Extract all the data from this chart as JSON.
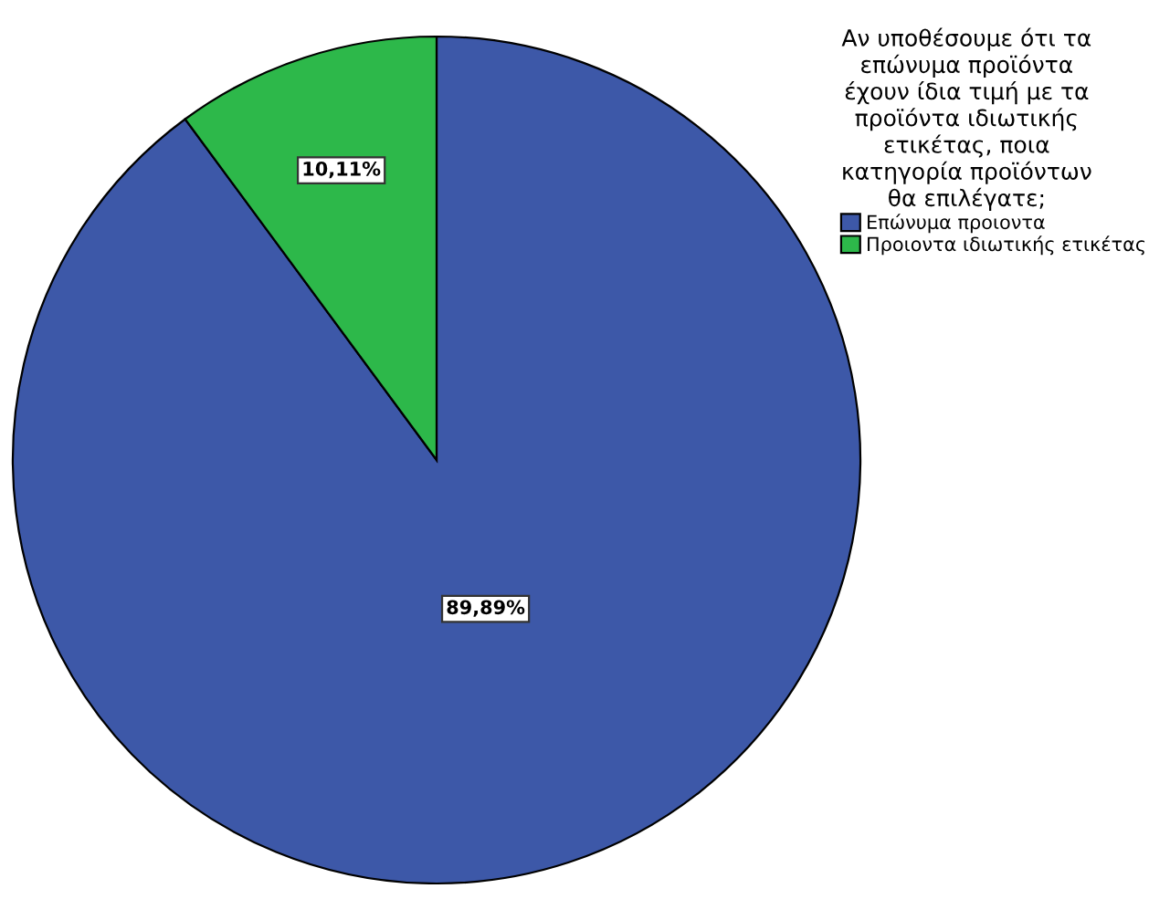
{
  "chart_data": {
    "type": "pie",
    "categories": [
      "Επώνυμα προιοντα",
      "Προιοντα ιδιωτικής ετικέτας"
    ],
    "values": [
      89.89,
      10.11
    ],
    "colors": [
      "#3d58a8",
      "#2db84a"
    ],
    "value_labels": [
      "89,89%",
      "10,11%"
    ],
    "legend_title": "Αν υποθέσουμε ότι τα\nεπώνυμα προϊόντα\nέχουν ίδια τιμή με τα\nπροϊόντα ιδιωτικής\nετικέτας, ποια\nκατηγορία προϊόντων\nθα επιλέγατε;",
    "legend": "top right"
  }
}
